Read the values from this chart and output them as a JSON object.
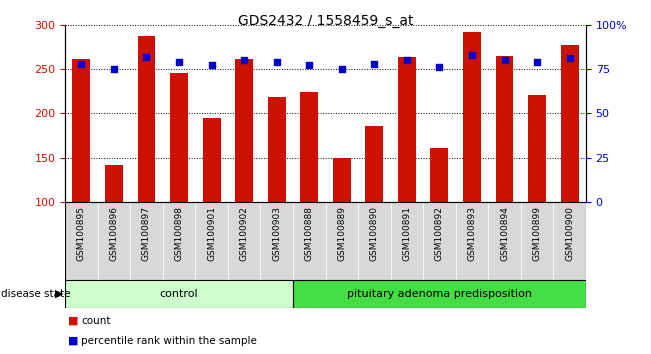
{
  "title": "GDS2432 / 1558459_s_at",
  "samples": [
    "GSM100895",
    "GSM100896",
    "GSM100897",
    "GSM100898",
    "GSM100901",
    "GSM100902",
    "GSM100903",
    "GSM100888",
    "GSM100889",
    "GSM100890",
    "GSM100891",
    "GSM100892",
    "GSM100893",
    "GSM100894",
    "GSM100899",
    "GSM100900"
  ],
  "bar_values": [
    261,
    141,
    287,
    246,
    195,
    261,
    218,
    224,
    150,
    186,
    264,
    161,
    292,
    265,
    221,
    277
  ],
  "percentile_values": [
    78,
    75,
    82,
    79,
    77,
    80,
    79,
    77,
    75,
    78,
    80,
    76,
    83,
    80,
    79,
    81
  ],
  "ylim_left": [
    100,
    300
  ],
  "ylim_right": [
    0,
    100
  ],
  "yticks_left": [
    100,
    150,
    200,
    250,
    300
  ],
  "yticks_right": [
    0,
    25,
    50,
    75,
    100
  ],
  "yticklabels_right": [
    "0",
    "25",
    "50",
    "75",
    "100%"
  ],
  "bar_color": "#cc1100",
  "dot_color": "#0000cc",
  "bar_width": 0.55,
  "control_count": 7,
  "group_labels": [
    "control",
    "pituitary adenoma predisposition"
  ],
  "group_color_light": "#ccffcc",
  "group_color_dark": "#44dd44",
  "disease_state_label": "disease state",
  "legend_bar_label": "count",
  "legend_dot_label": "percentile rank within the sample",
  "grid_color": "black",
  "cell_bg_color": "#d8d8d8",
  "axis_bg_color": "#ffffff",
  "tick_label_color_left": "#cc1100",
  "tick_label_color_right": "#0000cc",
  "fig_width": 6.51,
  "fig_height": 3.54,
  "dpi": 100
}
